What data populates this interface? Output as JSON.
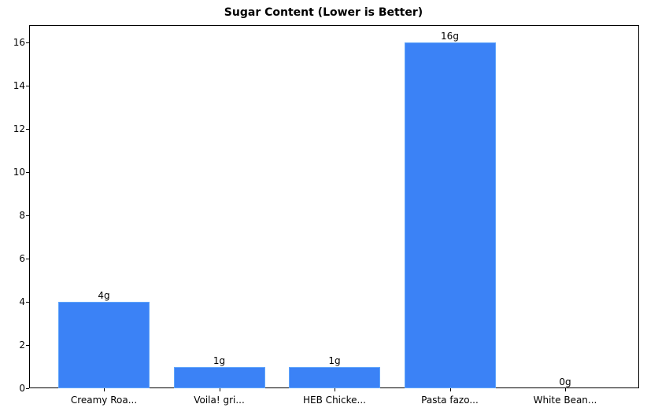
{
  "chart_data": {
    "type": "bar",
    "title": "Sugar Content (Lower is Better)",
    "xlabel": "",
    "ylabel": "",
    "categories": [
      "Creamy Roa...",
      "Voila! gri...",
      "HEB Chicke...",
      "Pasta fazo...",
      "White Bean..."
    ],
    "values": [
      4,
      1,
      1,
      16,
      0
    ],
    "value_labels": [
      "4g",
      "1g",
      "1g",
      "16g",
      "0g"
    ],
    "ylim": [
      0,
      16.8
    ],
    "yticks": [
      0,
      2,
      4,
      6,
      8,
      10,
      12,
      14,
      16
    ],
    "grid": false,
    "legend": null,
    "bar_color": "#3b82f6"
  }
}
